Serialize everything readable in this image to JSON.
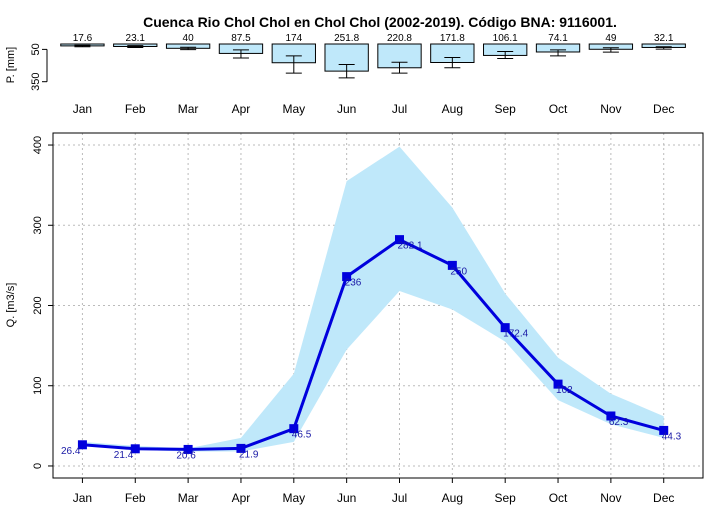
{
  "title": "Cuenca Rio Chol Chol en Chol Chol (2002-2019). Código BNA: 9116001.",
  "colors": {
    "band_fill": "#bfe8fa",
    "line": "#0000dd",
    "label": "#1a1aa6",
    "bar_fill": "#bfe8fa",
    "grid": "#bbbbbb",
    "frame": "#000000"
  },
  "chart_data": [
    {
      "type": "bar",
      "ylabel": "P. [mm]",
      "y_ticks": [
        "50",
        "350"
      ],
      "y_inverted": true,
      "ylim": [
        0,
        390
      ],
      "categories": [
        "Jan",
        "Feb",
        "Mar",
        "Apr",
        "May",
        "Jun",
        "Jul",
        "Aug",
        "Sep",
        "Oct",
        "Nov",
        "Dec"
      ],
      "values": [
        17.6,
        23.1,
        40,
        87.5,
        174,
        251.8,
        220.8,
        171.8,
        106.1,
        74.1,
        49,
        32.1
      ],
      "value_labels": [
        "17.6",
        "23.1",
        "40",
        "87.5",
        "174",
        "251.8",
        "220.8",
        "171.8",
        "106.1",
        "74.1",
        "49",
        "32.1"
      ],
      "error_low": [
        12,
        15,
        30,
        55,
        110,
        190,
        170,
        125,
        70,
        55,
        35,
        25
      ],
      "error_high": [
        25,
        32,
        52,
        130,
        270,
        315,
        270,
        220,
        135,
        110,
        75,
        48
      ]
    },
    {
      "type": "line",
      "ylabel": "Q. [m3/s]",
      "ylim": [
        -15,
        415
      ],
      "y_ticks": [
        0,
        100,
        200,
        300,
        400
      ],
      "categories": [
        "Jan",
        "Feb",
        "Mar",
        "Apr",
        "May",
        "Jun",
        "Jul",
        "Aug",
        "Sep",
        "Oct",
        "Nov",
        "Dec"
      ],
      "values": [
        26.4,
        21.4,
        20.6,
        21.9,
        46.5,
        236,
        282.1,
        250,
        172.4,
        102,
        62.3,
        44.3
      ],
      "value_labels": [
        "26.4",
        "21.4",
        "20.6",
        "21.9",
        "46.5",
        "236",
        "282.1",
        "250",
        "172.4",
        "102",
        "62.3",
        "44.3"
      ],
      "band_low": [
        25,
        20,
        18,
        18,
        30,
        145,
        218,
        195,
        155,
        82,
        52,
        35
      ],
      "band_high": [
        30,
        25,
        22,
        35,
        115,
        355,
        398,
        322,
        215,
        135,
        90,
        62
      ],
      "grid": true
    }
  ]
}
